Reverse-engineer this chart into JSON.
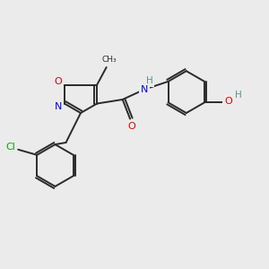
{
  "bg_color": "#ebebeb",
  "bond_color": "#2a2a2a",
  "bond_width": 1.4,
  "atom_colors": {
    "O": "#dd0000",
    "N": "#0000ee",
    "Cl": "#00aa00",
    "C": "#2a2a2a",
    "H": "#5a9090"
  }
}
